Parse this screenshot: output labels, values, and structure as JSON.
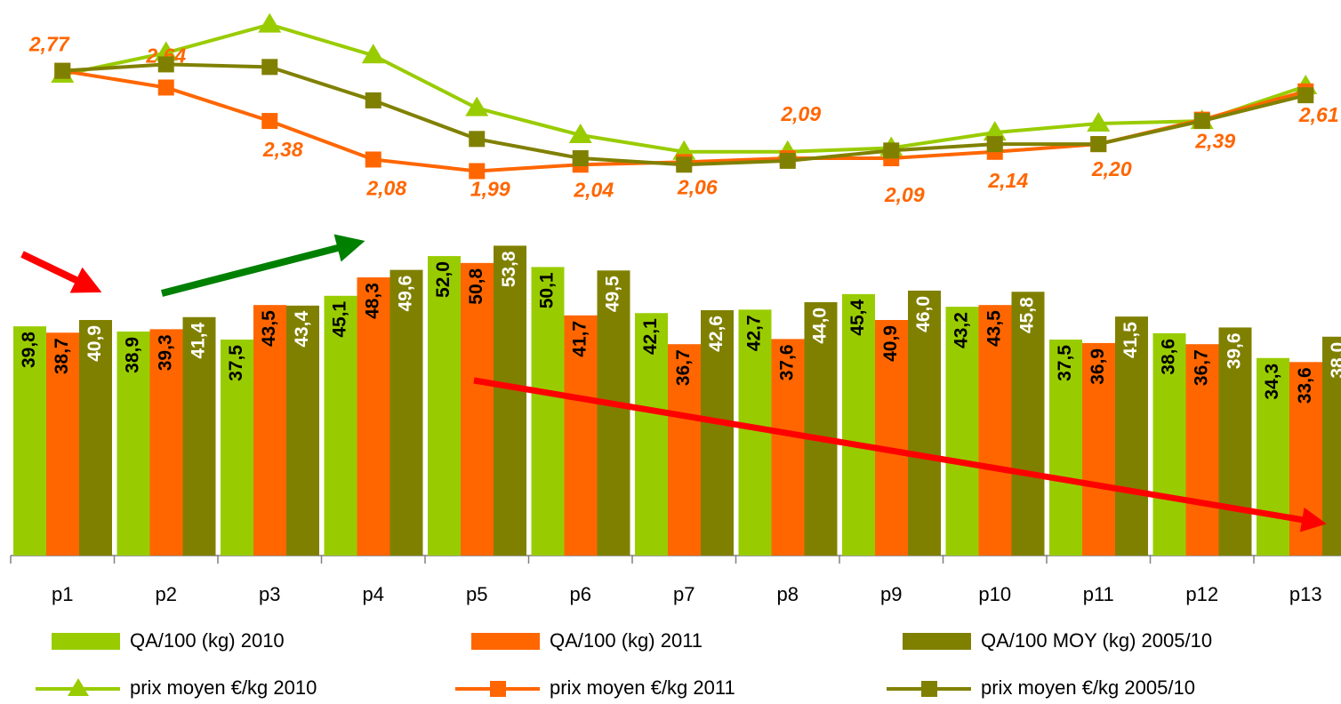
{
  "chart_data": {
    "type": "bar",
    "categories": [
      "p1",
      "p2",
      "p3",
      "p4",
      "p5",
      "p6",
      "p7",
      "p8",
      "p9",
      "p10",
      "p11",
      "p12",
      "p13"
    ],
    "ylim": [
      0,
      96
    ],
    "y2lim": [
      -1,
      3.3
    ],
    "series": [
      {
        "name": "QA/100 (kg) 2010",
        "color": "#99cc00",
        "label_color": "#000000",
        "values": [
          39.8,
          38.9,
          37.5,
          45.1,
          52.0,
          50.1,
          42.1,
          42.7,
          45.4,
          43.2,
          37.5,
          38.6,
          34.3
        ],
        "value_labels": [
          "39,8",
          "38,9",
          "37,5",
          "45,1",
          "52,0",
          "50,1",
          "42,1",
          "42,7",
          "45,4",
          "43,2",
          "37,5",
          "38,6",
          "34,3"
        ]
      },
      {
        "name": "QA/100 (kg) 2011",
        "color": "#ff6600",
        "label_color": "#000000",
        "values": [
          38.7,
          39.3,
          43.5,
          48.3,
          50.8,
          41.7,
          36.7,
          37.6,
          40.9,
          43.5,
          36.9,
          36.7,
          33.6
        ],
        "value_labels": [
          "38,7",
          "39,3",
          "43,5",
          "48,3",
          "50,8",
          "41,7",
          "36,7",
          "37,6",
          "40,9",
          "43,5",
          "36,9",
          "36,7",
          "33,6"
        ]
      },
      {
        "name": "QA/100 MOY (kg) 2005/10",
        "color": "#808000",
        "label_color": "#ffffff",
        "values": [
          40.9,
          41.4,
          43.4,
          49.6,
          53.8,
          49.5,
          42.6,
          44.0,
          46.0,
          45.8,
          41.5,
          39.6,
          38.0
        ],
        "value_labels": [
          "40,9",
          "41,4",
          "43,4",
          "49,6",
          "53,8",
          "49,5",
          "42,6",
          "44,0",
          "46,0",
          "45,8",
          "41,5",
          "39,6",
          "38,0"
        ]
      },
      {
        "name": "prix moyen €/kg 2010",
        "type": "line",
        "axis": "y2",
        "marker": "triangle",
        "color": "#99cc00",
        "values": [
          2.74,
          2.91,
          3.13,
          2.89,
          2.48,
          2.27,
          2.14,
          2.14,
          2.17,
          2.29,
          2.36,
          2.38,
          2.65
        ]
      },
      {
        "name": "prix moyen €/kg 2011",
        "type": "line",
        "axis": "y2",
        "marker": "square",
        "color": "#ff6600",
        "values": [
          2.77,
          2.64,
          2.38,
          2.08,
          1.99,
          2.04,
          2.06,
          2.09,
          2.09,
          2.14,
          2.2,
          2.39,
          2.61
        ],
        "value_labels": [
          "2,77",
          "2,64",
          "2,38",
          "2,08",
          "1,99",
          "2,04",
          "2,06",
          "2,09",
          "2,09",
          "2,14",
          "2,20",
          "2,39",
          "2,61"
        ]
      },
      {
        "name": "prix moyen €/kg 2005/10",
        "type": "line",
        "axis": "y2",
        "marker": "square",
        "color": "#808000",
        "values": [
          2.77,
          2.82,
          2.8,
          2.54,
          2.24,
          2.09,
          2.04,
          2.07,
          2.15,
          2.2,
          2.2,
          2.38,
          2.58
        ]
      }
    ]
  }
}
